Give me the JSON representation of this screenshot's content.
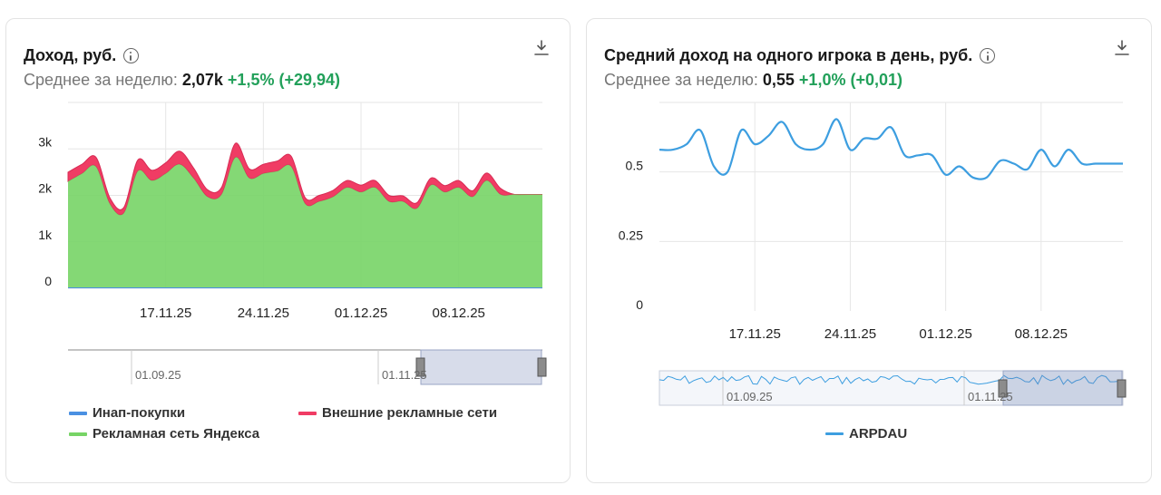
{
  "left": {
    "title": "Доход, руб.",
    "avg_label": "Среднее за неделю:",
    "avg_value": "2,07k",
    "avg_change": "+1,5% (+29,94)",
    "navigator_labels": [
      "01.09.25",
      "01.11.25"
    ],
    "legend": [
      {
        "label": "Инап-покупки",
        "color": "#4a90e2"
      },
      {
        "label": "Внешние рекламные сети",
        "color": "#f03c64"
      },
      {
        "label": "Рекламная сеть Яндекса",
        "color": "#77d466"
      }
    ]
  },
  "right": {
    "title": "Средний доход на одного игрока в день, руб.",
    "avg_label": "Среднее за неделю:",
    "avg_value": "0,55",
    "avg_change": "+1,0% (+0,01)",
    "navigator_labels": [
      "01.09.25",
      "01.11.25"
    ],
    "legend": [
      {
        "label": "ARPDAU",
        "color": "#3d9ee0"
      }
    ]
  },
  "chart_data": [
    {
      "type": "area",
      "stacked": true,
      "title": "Доход, руб.",
      "x": [
        "10.11",
        "11.11",
        "12.11",
        "13.11",
        "14.11",
        "15.11",
        "16.11",
        "17.11",
        "18.11",
        "19.11",
        "20.11",
        "21.11",
        "22.11",
        "23.11",
        "24.11",
        "25.11",
        "26.11",
        "27.11",
        "28.11",
        "29.11",
        "30.11",
        "01.12",
        "02.12",
        "03.12",
        "04.12",
        "05.12",
        "06.12",
        "07.12",
        "08.12",
        "09.12",
        "10.12",
        "11.12",
        "12.12",
        "13.12",
        "14.12"
      ],
      "x_tick_labels": [
        "17.11.25",
        "24.11.25",
        "01.12.25",
        "08.12.25"
      ],
      "y_tick_labels": [
        "0",
        "1k",
        "2k",
        "3k"
      ],
      "ylim": [
        0,
        4000
      ],
      "grid": true,
      "legend_position": "bottom",
      "series": [
        {
          "name": "Инап-покупки",
          "color": "#4a90e2",
          "values": [
            20,
            20,
            20,
            20,
            20,
            20,
            20,
            20,
            20,
            20,
            20,
            20,
            20,
            20,
            20,
            20,
            20,
            20,
            20,
            20,
            20,
            20,
            20,
            20,
            20,
            20,
            20,
            20,
            20,
            20,
            20,
            20,
            20,
            20,
            20
          ]
        },
        {
          "name": "Рекламная сеть Яндекса",
          "color": "#77d466",
          "values": [
            2280,
            2450,
            2600,
            1800,
            1600,
            2500,
            2300,
            2450,
            2650,
            2350,
            1950,
            2000,
            2800,
            2350,
            2450,
            2500,
            2600,
            1800,
            1850,
            1950,
            2150,
            2050,
            2150,
            1850,
            1850,
            1700,
            2200,
            2050,
            2150,
            1950,
            2300,
            2000,
            2000,
            2000,
            2000
          ]
        },
        {
          "name": "Внешние рекламные сети",
          "color": "#f03c64",
          "values": [
            200,
            200,
            200,
            130,
            120,
            240,
            220,
            230,
            280,
            220,
            150,
            150,
            300,
            200,
            200,
            220,
            220,
            130,
            130,
            140,
            150,
            150,
            150,
            130,
            120,
            120,
            150,
            140,
            150,
            130,
            160,
            130,
            0,
            0,
            0
          ]
        }
      ]
    },
    {
      "type": "line",
      "title": "Средний доход на одного игрока в день, руб.",
      "x": [
        "10.11",
        "11.11",
        "12.11",
        "13.11",
        "14.11",
        "15.11",
        "16.11",
        "17.11",
        "18.11",
        "19.11",
        "20.11",
        "21.11",
        "22.11",
        "23.11",
        "24.11",
        "25.11",
        "26.11",
        "27.11",
        "28.11",
        "29.11",
        "30.11",
        "01.12",
        "02.12",
        "03.12",
        "04.12",
        "05.12",
        "06.12",
        "07.12",
        "08.12",
        "09.12",
        "10.12",
        "11.12",
        "12.12",
        "13.12",
        "14.12"
      ],
      "x_tick_labels": [
        "17.11.25",
        "24.11.25",
        "01.12.25",
        "08.12.25"
      ],
      "y_tick_labels": [
        "0",
        "0.25",
        "0.5"
      ],
      "ylim": [
        0,
        0.75
      ],
      "grid": true,
      "legend_position": "bottom",
      "series": [
        {
          "name": "ARPDAU",
          "color": "#3d9ee0",
          "values": [
            0.58,
            0.58,
            0.6,
            0.65,
            0.52,
            0.5,
            0.65,
            0.6,
            0.63,
            0.68,
            0.6,
            0.58,
            0.6,
            0.69,
            0.58,
            0.62,
            0.62,
            0.66,
            0.56,
            0.56,
            0.56,
            0.49,
            0.52,
            0.48,
            0.48,
            0.54,
            0.53,
            0.51,
            0.58,
            0.52,
            0.58,
            0.53,
            0.53,
            0.53,
            0.53
          ]
        }
      ]
    }
  ]
}
